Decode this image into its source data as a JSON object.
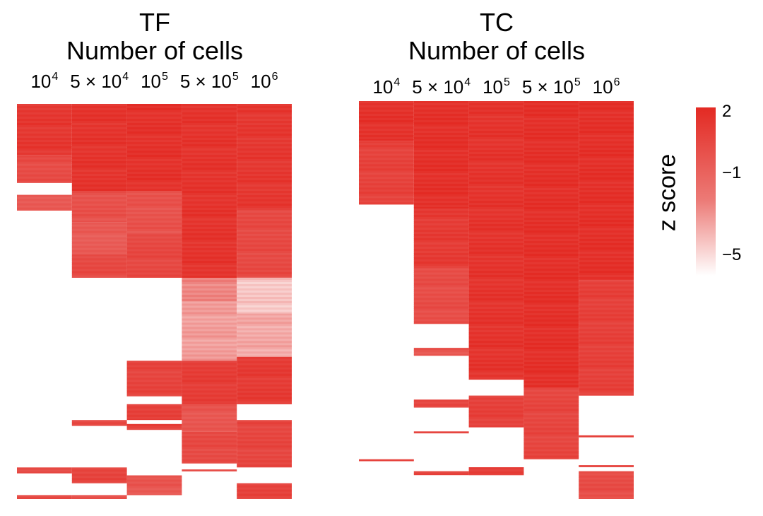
{
  "chart_data": [
    {
      "type": "heatmap",
      "title": "TF",
      "subtitle": "Number of cells",
      "columns": [
        {
          "base": "10",
          "exp": "4"
        },
        {
          "base": "5 × 10",
          "exp": "4"
        },
        {
          "base": "10",
          "exp": "5"
        },
        {
          "base": "5 × 10",
          "exp": "5"
        },
        {
          "base": "10",
          "exp": "6"
        }
      ],
      "segments": [
        {
          "col": 0,
          "y0": 0.0,
          "y1": 0.13,
          "z": 1.4
        },
        {
          "col": 0,
          "y0": 0.13,
          "y1": 0.2,
          "z": 0.3
        },
        {
          "col": 0,
          "y0": 0.23,
          "y1": 0.27,
          "z": -0.6
        },
        {
          "col": 0,
          "y0": 0.92,
          "y1": 0.935,
          "z": 0.5
        },
        {
          "col": 0,
          "y0": 0.99,
          "y1": 1.0,
          "z": 0.3
        },
        {
          "col": 1,
          "y0": 0.0,
          "y1": 0.22,
          "z": 1.6
        },
        {
          "col": 1,
          "y0": 0.22,
          "y1": 0.3,
          "z": 0.0
        },
        {
          "col": 1,
          "y0": 0.3,
          "y1": 0.38,
          "z": -0.6
        },
        {
          "col": 1,
          "y0": 0.38,
          "y1": 0.44,
          "z": 0.4
        },
        {
          "col": 1,
          "y0": 0.8,
          "y1": 0.815,
          "z": 0.3
        },
        {
          "col": 1,
          "y0": 0.92,
          "y1": 0.96,
          "z": 0.6
        },
        {
          "col": 1,
          "y0": 0.99,
          "y1": 1.0,
          "z": 0.2
        },
        {
          "col": 2,
          "y0": 0.0,
          "y1": 0.22,
          "z": 1.7
        },
        {
          "col": 2,
          "y0": 0.22,
          "y1": 0.33,
          "z": -0.1
        },
        {
          "col": 2,
          "y0": 0.33,
          "y1": 0.44,
          "z": 0.5
        },
        {
          "col": 2,
          "y0": 0.65,
          "y1": 0.74,
          "z": 0.7
        },
        {
          "col": 2,
          "y0": 0.76,
          "y1": 0.8,
          "z": 0.9
        },
        {
          "col": 2,
          "y0": 0.81,
          "y1": 0.825,
          "z": 0.8
        },
        {
          "col": 2,
          "y0": 0.94,
          "y1": 0.99,
          "z": -0.3
        },
        {
          "col": 3,
          "y0": 0.0,
          "y1": 0.44,
          "z": 1.6
        },
        {
          "col": 3,
          "y0": 0.44,
          "y1": 0.5,
          "z": -2.6
        },
        {
          "col": 3,
          "y0": 0.5,
          "y1": 0.65,
          "z": -3.3
        },
        {
          "col": 3,
          "y0": 0.65,
          "y1": 0.76,
          "z": 1.1
        },
        {
          "col": 3,
          "y0": 0.76,
          "y1": 0.83,
          "z": -0.3
        },
        {
          "col": 3,
          "y0": 0.83,
          "y1": 0.91,
          "z": 0.4
        },
        {
          "col": 3,
          "y0": 0.925,
          "y1": 0.93,
          "z": 0.2
        },
        {
          "col": 4,
          "y0": 0.0,
          "y1": 0.27,
          "z": 1.4
        },
        {
          "col": 4,
          "y0": 0.27,
          "y1": 0.44,
          "z": 0.4
        },
        {
          "col": 4,
          "y0": 0.44,
          "y1": 0.53,
          "z": -4.4
        },
        {
          "col": 4,
          "y0": 0.53,
          "y1": 0.64,
          "z": -3.6
        },
        {
          "col": 4,
          "y0": 0.64,
          "y1": 0.76,
          "z": 1.2
        },
        {
          "col": 4,
          "y0": 0.8,
          "y1": 0.92,
          "z": 0.6
        },
        {
          "col": 4,
          "y0": 0.96,
          "y1": 1.0,
          "z": 0.7
        }
      ]
    },
    {
      "type": "heatmap",
      "title": "TC",
      "subtitle": "Number of cells",
      "columns": [
        {
          "base": "10",
          "exp": "4"
        },
        {
          "base": "5 × 10",
          "exp": "4"
        },
        {
          "base": "10",
          "exp": "5"
        },
        {
          "base": "5 × 10",
          "exp": "5"
        },
        {
          "base": "10",
          "exp": "6"
        }
      ],
      "segments": [
        {
          "col": 0,
          "y0": 0.0,
          "y1": 0.1,
          "z": 1.7
        },
        {
          "col": 0,
          "y0": 0.1,
          "y1": 0.26,
          "z": 0.8
        },
        {
          "col": 0,
          "y0": 0.9,
          "y1": 0.905,
          "z": 0.6
        },
        {
          "col": 1,
          "y0": 0.0,
          "y1": 0.27,
          "z": 1.8
        },
        {
          "col": 1,
          "y0": 0.27,
          "y1": 0.42,
          "z": 1.2
        },
        {
          "col": 1,
          "y0": 0.42,
          "y1": 0.56,
          "z": 0.2
        },
        {
          "col": 1,
          "y0": 0.62,
          "y1": 0.64,
          "z": -0.2
        },
        {
          "col": 1,
          "y0": 0.75,
          "y1": 0.77,
          "z": 0.5
        },
        {
          "col": 1,
          "y0": 0.83,
          "y1": 0.835,
          "z": 0.6
        },
        {
          "col": 1,
          "y0": 0.93,
          "y1": 0.94,
          "z": 0.6
        },
        {
          "col": 2,
          "y0": 0.0,
          "y1": 0.7,
          "z": 1.6
        },
        {
          "col": 2,
          "y0": 0.74,
          "y1": 0.82,
          "z": 0.9
        },
        {
          "col": 2,
          "y0": 0.92,
          "y1": 0.94,
          "z": 0.8
        },
        {
          "col": 3,
          "y0": 0.0,
          "y1": 0.72,
          "z": 1.8
        },
        {
          "col": 3,
          "y0": 0.72,
          "y1": 0.9,
          "z": 0.6
        },
        {
          "col": 4,
          "y0": 0.0,
          "y1": 0.45,
          "z": 1.8
        },
        {
          "col": 4,
          "y0": 0.45,
          "y1": 0.74,
          "z": 0.9
        },
        {
          "col": 4,
          "y0": 0.84,
          "y1": 0.845,
          "z": 0.5
        },
        {
          "col": 4,
          "y0": 0.915,
          "y1": 0.92,
          "z": 0.5
        },
        {
          "col": 4,
          "y0": 0.93,
          "y1": 1.0,
          "z": 0.2
        }
      ]
    }
  ],
  "legend": {
    "title": "z score",
    "ticks": [
      {
        "value": 2,
        "label": "2"
      },
      {
        "value": -1,
        "label": "−1"
      },
      {
        "value": -5,
        "label": "−5"
      }
    ],
    "range": [
      -6,
      2.2
    ]
  }
}
